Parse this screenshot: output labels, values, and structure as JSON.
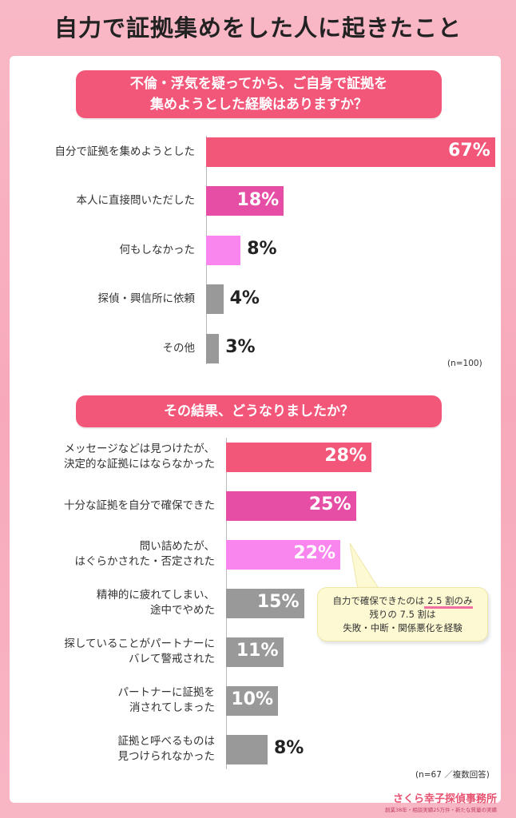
{
  "title": "自力で証拠集めをした人に起きたこと",
  "chart_data": [
    {
      "type": "bar",
      "title": "不倫・浮気を疑ってから、ご自身で証拠を\n集めようとした経験はありますか？",
      "sample_note": "(n=100)",
      "categories": [
        "自分で証拠を集めようとした",
        "本人に直接問いただした",
        "何もしなかった",
        "探偵・興信所に依頼",
        "その他"
      ],
      "values": [
        67,
        18,
        8,
        4,
        3
      ],
      "value_labels": [
        "67%",
        "18%",
        "8%",
        "4%",
        "3%"
      ],
      "colors": [
        "#f2577a",
        "#e64ea6",
        "#f986ee",
        "#999999",
        "#999999"
      ]
    },
    {
      "type": "bar",
      "title": "その結果、どうなりましたか？",
      "sample_note": "(n=67 ／複数回答)",
      "categories": [
        "メッセージなどは見つけたが、\n決定的な証拠にはならなかった",
        "十分な証拠を自分で確保できた",
        "問い詰めたが、\nはぐらかされた・否定された",
        "精神的に疲れてしまい、\n途中でやめた",
        "探していることがパートナーに\nバレて警戒された",
        "パートナーに証拠を\n消されてしまった",
        "証拠と呼べるものは\n見つけられなかった"
      ],
      "values": [
        28,
        25,
        22,
        15,
        11,
        10,
        8
      ],
      "value_labels": [
        "28%",
        "25%",
        "22%",
        "15%",
        "11%",
        "10%",
        "8%"
      ],
      "colors": [
        "#f2577a",
        "#e64ea6",
        "#f986ee",
        "#999999",
        "#999999",
        "#999999",
        "#999999"
      ]
    }
  ],
  "callout": {
    "line1_pre": "自力で確保できたのは",
    "line1_hl": " 2.5 割のみ",
    "line2": "残りの 7.5 割は",
    "line3": "失敗・中断・関係悪化を経験"
  },
  "footer": {
    "brand": "さくら幸子探偵事務所",
    "sub": "創業38年・相談実績25万件・新たな質量の実績"
  }
}
